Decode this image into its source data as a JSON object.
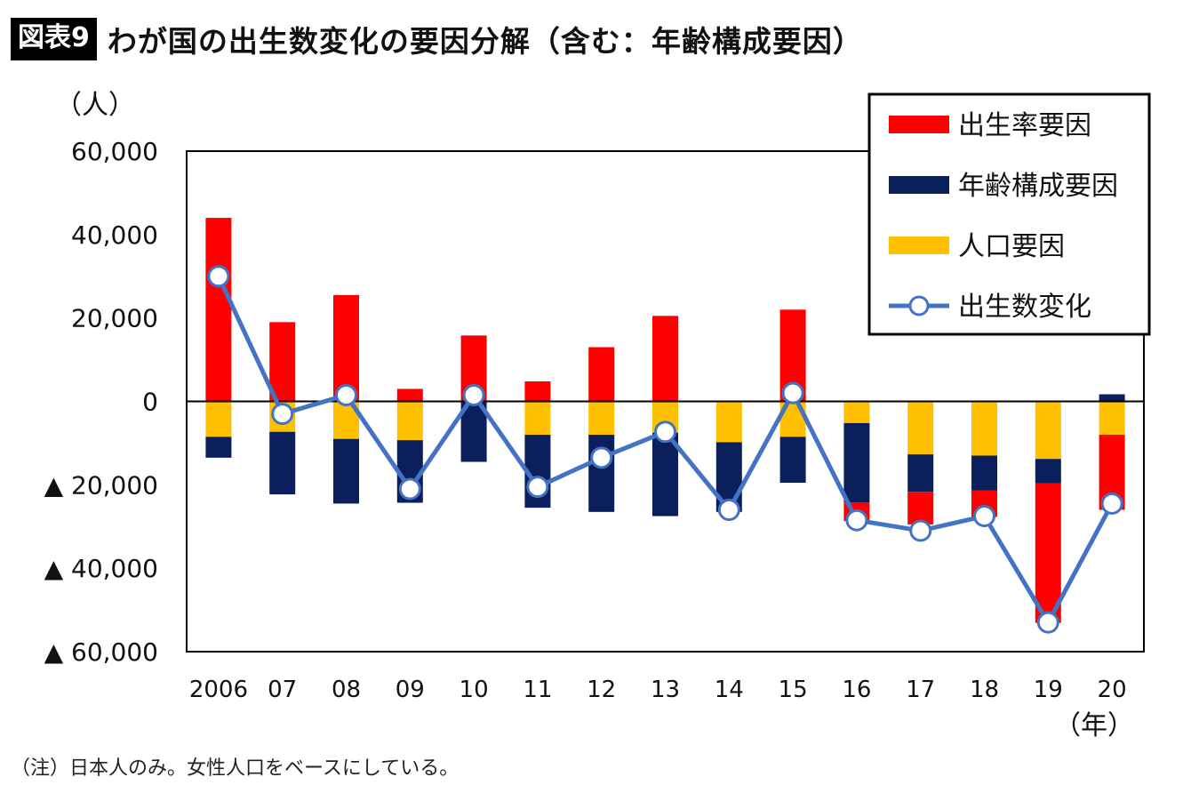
{
  "header": {
    "badge": "図表9",
    "title": "わが国の出生数変化の要因分解（含む：年齢構成要因）"
  },
  "note": "（注）日本人のみ。女性人口をベースにしている。",
  "chart_data": {
    "type": "bar",
    "stacked": true,
    "y_unit_label": "（人）",
    "x_unit_label": "（年）",
    "categories": [
      "2006",
      "07",
      "08",
      "09",
      "10",
      "11",
      "12",
      "13",
      "14",
      "15",
      "16",
      "17",
      "18",
      "19",
      "20"
    ],
    "ylim": [
      -60000,
      60000
    ],
    "yticks": [
      60000,
      40000,
      20000,
      0,
      -20000,
      -40000,
      -60000
    ],
    "ytick_labels": [
      "60,000",
      "40,000",
      "20,000",
      "0",
      "▲ 20,000",
      "▲ 40,000",
      "▲ 60,000"
    ],
    "grid": false,
    "legend_position": "top-right",
    "colors": {
      "birthrate": "#ff0000",
      "age": "#0a1f5c",
      "population": "#ffc000",
      "line": "#4472c4"
    },
    "series": [
      {
        "name": "出生率要因",
        "key": "birthrate",
        "kind": "bar",
        "values": [
          44000,
          19000,
          25500,
          3000,
          15800,
          4800,
          13000,
          20500,
          0,
          22000,
          -4500,
          -7800,
          -6300,
          -33500,
          -18000
        ]
      },
      {
        "name": "年齢構成要因",
        "key": "age",
        "kind": "bar",
        "values": [
          -5000,
          -15000,
          -15500,
          -15000,
          -14500,
          -17500,
          -18500,
          -20000,
          -16700,
          -11000,
          -19000,
          -9000,
          -8400,
          -5800,
          1700
        ]
      },
      {
        "name": "人口要因",
        "key": "population",
        "kind": "bar",
        "values": [
          -8500,
          -7300,
          -9000,
          -9300,
          0,
          -8000,
          -8000,
          -7500,
          -9800,
          -8500,
          -5200,
          -12700,
          -13000,
          -13800,
          -8000
        ]
      },
      {
        "name": "出生数変化",
        "key": "line",
        "kind": "line",
        "values": [
          30000,
          -3000,
          1500,
          -21000,
          1500,
          -20500,
          -13500,
          -7300,
          -26000,
          2000,
          -28500,
          -31000,
          -27500,
          -53000,
          -24500
        ]
      }
    ]
  }
}
